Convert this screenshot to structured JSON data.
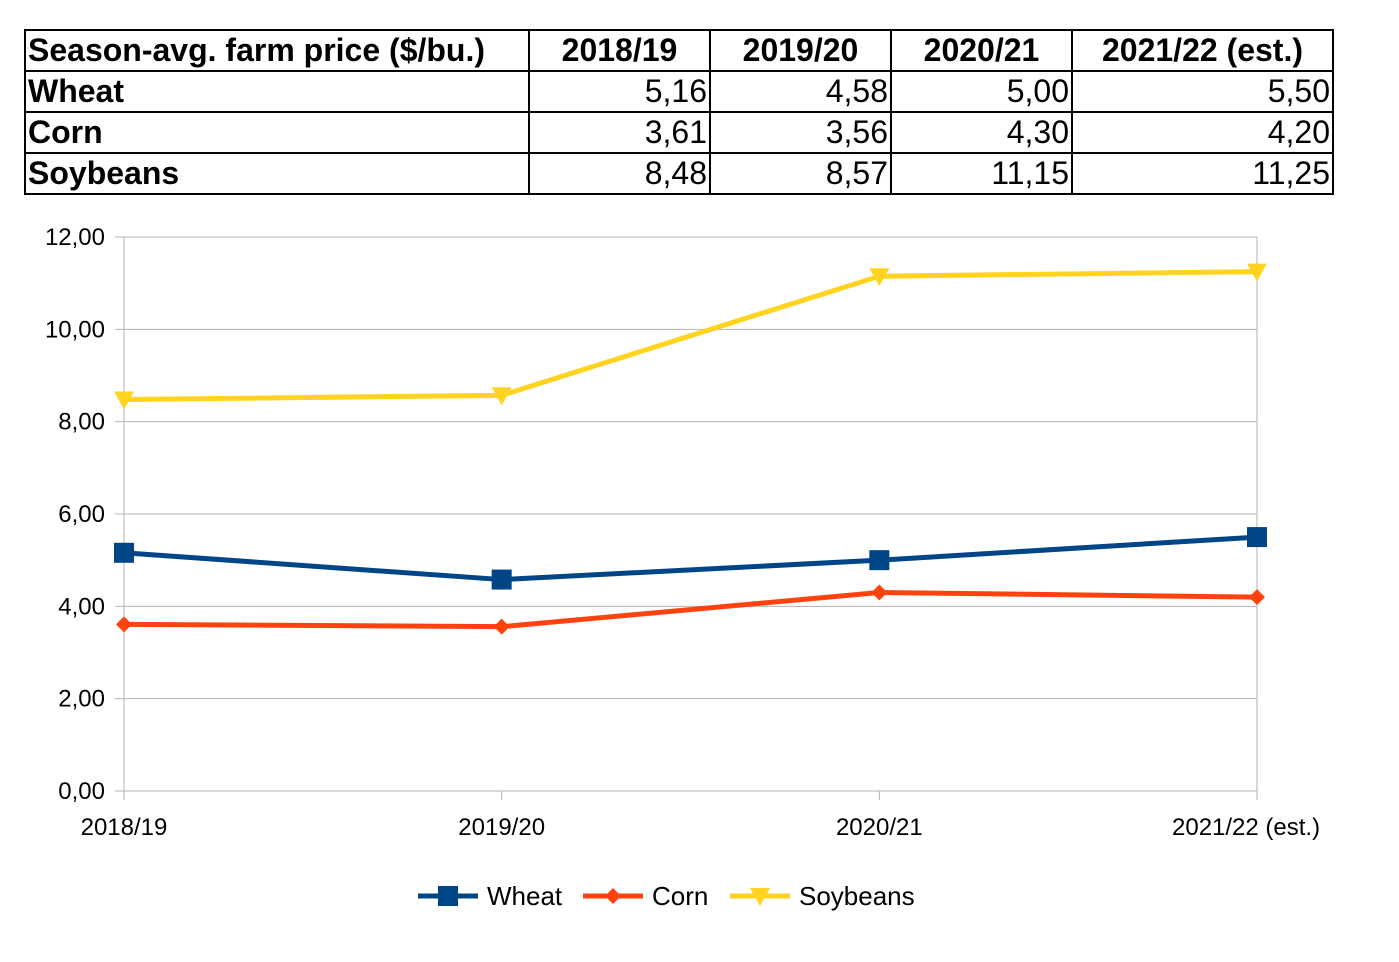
{
  "table": {
    "header": [
      "Season-avg. farm price ($/bu.)",
      "2018/19",
      "2019/20",
      "2020/21",
      "2021/22 (est.)"
    ],
    "rows": [
      {
        "label": "Wheat",
        "cells": [
          "5,16",
          "4,58",
          "5,00",
          "5,50"
        ]
      },
      {
        "label": "Corn",
        "cells": [
          "3,61",
          "3,56",
          "4,30",
          "4,20"
        ]
      },
      {
        "label": "Soybeans",
        "cells": [
          "8,48",
          "8,57",
          "11,15",
          "11,25"
        ]
      }
    ]
  },
  "chart_data": {
    "type": "line",
    "title": "",
    "xlabel": "",
    "ylabel": "",
    "categories": [
      "2018/19",
      "2019/20",
      "2020/21",
      "2021/22 (est.)"
    ],
    "ylim": [
      0,
      12
    ],
    "ytick_labels": [
      "0,00",
      "2,00",
      "4,00",
      "6,00",
      "8,00",
      "10,00",
      "12,00"
    ],
    "grid": "horizontal",
    "legend_position": "bottom",
    "series": [
      {
        "name": "Wheat",
        "values": [
          5.16,
          4.58,
          5.0,
          5.5
        ],
        "color": "#004586",
        "marker": "square"
      },
      {
        "name": "Corn",
        "values": [
          3.61,
          3.56,
          4.3,
          4.2
        ],
        "color": "#ff420e",
        "marker": "diamond"
      },
      {
        "name": "Soybeans",
        "values": [
          8.48,
          8.57,
          11.15,
          11.25
        ],
        "color": "#ffd320",
        "marker": "triangle-down"
      }
    ]
  }
}
